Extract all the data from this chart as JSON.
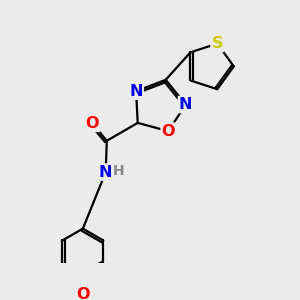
{
  "bg_color": "#ebebeb",
  "bond_color": "#000000",
  "bond_width": 1.6,
  "atom_colors": {
    "N": "#0000ee",
    "O": "#ff0000",
    "S": "#cccc00",
    "H": "#888888"
  },
  "font_size_main": 11.5,
  "font_size_h": 10
}
